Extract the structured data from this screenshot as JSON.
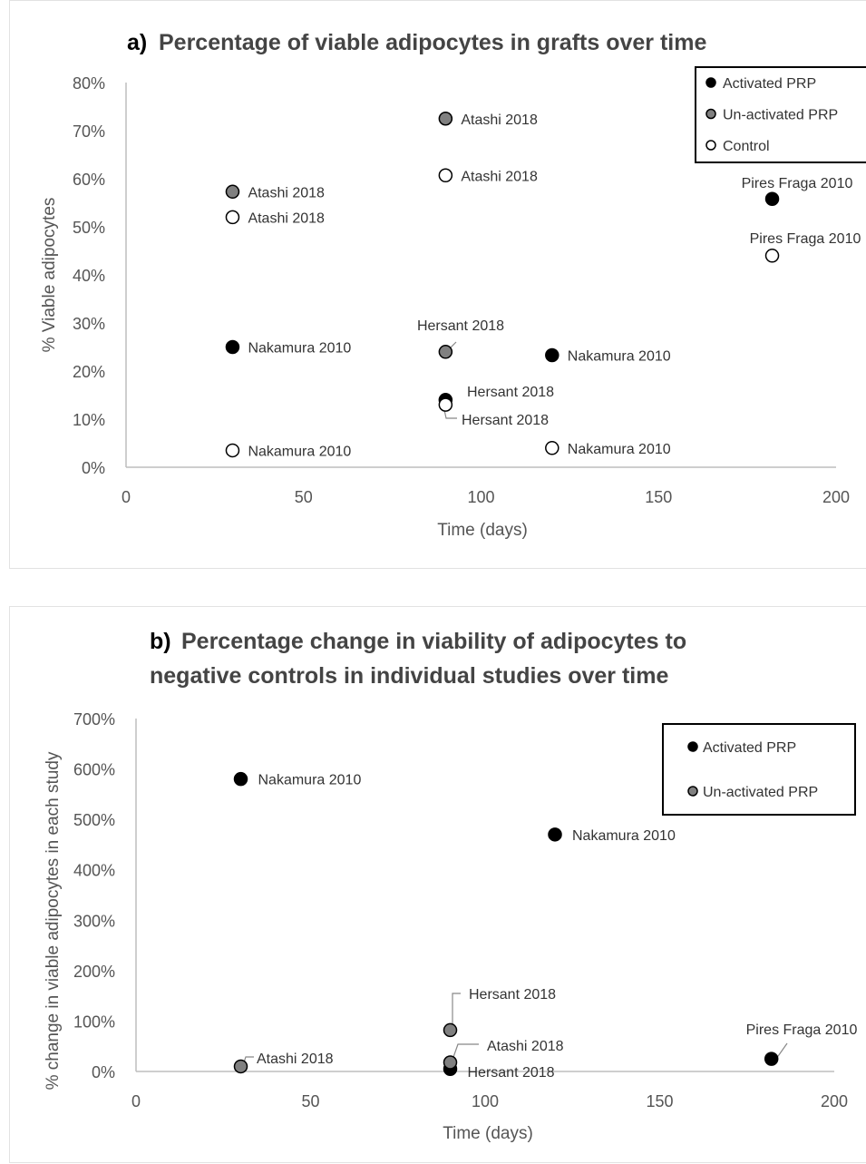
{
  "chart_data": [
    {
      "type": "scatter",
      "title_letter": "a)",
      "title": "Percentage of viable adipocytes in grafts over time",
      "xlabel": "Time (days)",
      "ylabel": "% Viable adipocytes",
      "xlim": [
        0,
        200
      ],
      "ylim": [
        0,
        80
      ],
      "x_ticks": [
        "0",
        "50",
        "100",
        "150",
        "200"
      ],
      "y_ticks": [
        "0%",
        "10%",
        "20%",
        "30%",
        "40%",
        "50%",
        "60%",
        "70%",
        "80%"
      ],
      "grid": false,
      "legend_position": "top-right",
      "series": [
        {
          "name": "Activated PRP",
          "color": "#000000",
          "points": [
            {
              "x": 30,
              "y": 25,
              "label": "Nakamura 2010"
            },
            {
              "x": 90,
              "y": 14,
              "label": "Hersant 2018"
            },
            {
              "x": 120,
              "y": 23.3,
              "label": "Nakamura 2010"
            },
            {
              "x": 182,
              "y": 55.8,
              "label": "Pires Fraga 2010"
            }
          ]
        },
        {
          "name": "Un-activated PRP",
          "color": "#808080",
          "points": [
            {
              "x": 30,
              "y": 57.3,
              "label": "Atashi 2018"
            },
            {
              "x": 90,
              "y": 72.5,
              "label": "Atashi 2018"
            },
            {
              "x": 90,
              "y": 24,
              "label": "Hersant 2018"
            }
          ]
        },
        {
          "name": "Control",
          "color": "#ffffff",
          "points": [
            {
              "x": 30,
              "y": 52,
              "label": "Atashi 2018"
            },
            {
              "x": 30,
              "y": 3.5,
              "label": "Nakamura 2010"
            },
            {
              "x": 90,
              "y": 60.7,
              "label": "Atashi 2018"
            },
            {
              "x": 90,
              "y": 13,
              "label": "Hersant 2018"
            },
            {
              "x": 120,
              "y": 4,
              "label": "Nakamura 2010"
            },
            {
              "x": 182,
              "y": 44,
              "label": "Pires Fraga 2010"
            }
          ]
        }
      ]
    },
    {
      "type": "scatter",
      "title_letter": "b)",
      "title_lines": [
        "Percentage change in viability of adipocytes to",
        "negative controls  in individual studies  over time"
      ],
      "xlabel": "Time (days)",
      "ylabel": "% change in viable adipocytes in each study",
      "xlim": [
        0,
        200
      ],
      "ylim": [
        0,
        700
      ],
      "x_ticks": [
        "0",
        "50",
        "100",
        "150",
        "200"
      ],
      "y_ticks": [
        "0%",
        "100%",
        "200%",
        "300%",
        "400%",
        "500%",
        "600%",
        "700%"
      ],
      "grid": false,
      "legend_position": "top-right",
      "series": [
        {
          "name": "Activated PRP",
          "color": "#000000",
          "points": [
            {
              "x": 30,
              "y": 580,
              "label": "Nakamura 2010"
            },
            {
              "x": 120,
              "y": 470,
              "label": "Nakamura 2010"
            },
            {
              "x": 90,
              "y": 5,
              "label": "Hersant 2018"
            },
            {
              "x": 182,
              "y": 25,
              "label": "Pires Fraga 2010"
            }
          ]
        },
        {
          "name": "Un-activated PRP",
          "color": "#808080",
          "points": [
            {
              "x": 30,
              "y": 10,
              "label": "Atashi 2018"
            },
            {
              "x": 90,
              "y": 82,
              "label": "Hersant 2018"
            },
            {
              "x": 90,
              "y": 18,
              "label": "Atashi 2018"
            }
          ]
        }
      ]
    }
  ]
}
